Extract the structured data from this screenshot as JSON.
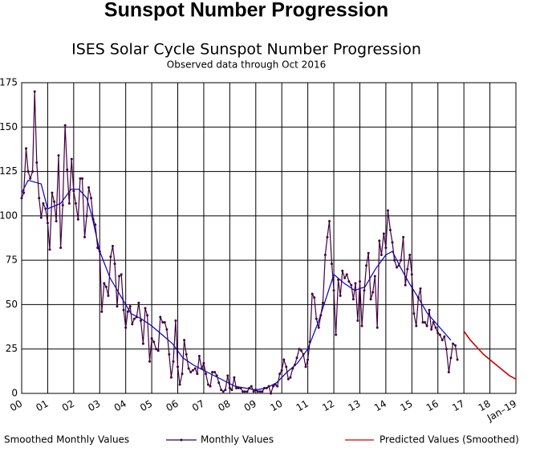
{
  "chart_data": {
    "type": "line",
    "title": "Sunspot Number Progression",
    "subtitle": "ISES Solar Cycle Sunspot Number Progression",
    "note": "Observed data through Oct 2016",
    "xlim": [
      0,
      19
    ],
    "ylim": [
      0,
      175
    ],
    "xticks": [
      {
        "value": 0,
        "label": "00"
      },
      {
        "value": 1,
        "label": "01"
      },
      {
        "value": 2,
        "label": "02"
      },
      {
        "value": 3,
        "label": "03"
      },
      {
        "value": 4,
        "label": "04"
      },
      {
        "value": 5,
        "label": "05"
      },
      {
        "value": 6,
        "label": "06"
      },
      {
        "value": 7,
        "label": "07"
      },
      {
        "value": 8,
        "label": "08"
      },
      {
        "value": 9,
        "label": "09"
      },
      10,
      11,
      12,
      13,
      14,
      15,
      16,
      17,
      18,
      {
        "value": 19,
        "label": "Jan–19"
      }
    ],
    "yticks": [
      0,
      25,
      50,
      75,
      100,
      125,
      150,
      175
    ],
    "grid": true,
    "series": [
      {
        "name": "Smoothed Monthly Values",
        "color": "#0000cc",
        "x": [
          0,
          0.25,
          0.75,
          1,
          1.5,
          1.9,
          2.2,
          2.5,
          2.7,
          2.85,
          3,
          3.4,
          3.8,
          4.2,
          4.6,
          5,
          5.4,
          5.8,
          6.2,
          6.6,
          7,
          7.4,
          7.8,
          8.2,
          8.6,
          9,
          9.4,
          9.8,
          10.2,
          10.6,
          11,
          11.4,
          11.8,
          12,
          12.4,
          12.8,
          13.2,
          13.6,
          14,
          14.25,
          14.6,
          14.9,
          15.2,
          15.6,
          15.9,
          16.2,
          16.5
        ],
        "values": [
          113,
          120,
          118,
          104,
          107,
          115,
          115,
          110,
          100,
          90,
          80,
          65,
          55,
          45,
          42,
          38,
          33,
          28,
          20,
          16,
          13,
          10,
          7,
          4,
          3,
          2,
          3,
          6,
          12,
          17,
          25,
          40,
          58,
          67,
          62,
          58,
          60,
          70,
          78,
          80,
          70,
          62,
          55,
          45,
          40,
          35,
          30
        ]
      },
      {
        "name": "Monthly Values",
        "color": "#400040",
        "x": [
          0,
          0.08,
          0.17,
          0.25,
          0.33,
          0.42,
          0.5,
          0.58,
          0.67,
          0.75,
          0.83,
          0.92,
          1,
          1.08,
          1.17,
          1.25,
          1.33,
          1.42,
          1.5,
          1.58,
          1.67,
          1.75,
          1.83,
          1.92,
          2,
          2.08,
          2.17,
          2.25,
          2.33,
          2.42,
          2.5,
          2.58,
          2.67,
          2.75,
          2.83,
          2.92,
          3,
          3.08,
          3.17,
          3.25,
          3.33,
          3.42,
          3.5,
          3.58,
          3.67,
          3.75,
          3.83,
          3.92,
          4,
          4.08,
          4.17,
          4.25,
          4.33,
          4.42,
          4.5,
          4.58,
          4.67,
          4.75,
          4.83,
          4.92,
          5,
          5.08,
          5.17,
          5.25,
          5.33,
          5.42,
          5.5,
          5.58,
          5.67,
          5.75,
          5.83,
          5.92,
          6,
          6.08,
          6.17,
          6.25,
          6.33,
          6.42,
          6.5,
          6.58,
          6.67,
          6.75,
          6.83,
          6.92,
          7,
          7.08,
          7.17,
          7.25,
          7.33,
          7.42,
          7.5,
          7.58,
          7.67,
          7.75,
          7.83,
          7.92,
          8,
          8.08,
          8.17,
          8.25,
          8.33,
          8.42,
          8.5,
          8.58,
          8.67,
          8.75,
          8.83,
          8.92,
          9,
          9.08,
          9.17,
          9.25,
          9.33,
          9.42,
          9.5,
          9.58,
          9.67,
          9.75,
          9.83,
          9.92,
          10,
          10.08,
          10.17,
          10.25,
          10.33,
          10.42,
          10.5,
          10.58,
          10.67,
          10.75,
          10.83,
          10.92,
          11,
          11.08,
          11.17,
          11.25,
          11.33,
          11.42,
          11.5,
          11.58,
          11.67,
          11.75,
          11.83,
          11.92,
          12,
          12.08,
          12.17,
          12.25,
          12.33,
          12.42,
          12.5,
          12.58,
          12.67,
          12.75,
          12.83,
          12.92,
          13,
          13.08,
          13.17,
          13.25,
          13.33,
          13.42,
          13.5,
          13.58,
          13.67,
          13.75,
          13.83,
          13.92,
          14,
          14.08,
          14.17,
          14.25,
          14.33,
          14.42,
          14.5,
          14.58,
          14.67,
          14.75,
          14.83,
          14.92,
          15,
          15.08,
          15.17,
          15.25,
          15.33,
          15.42,
          15.5,
          15.58,
          15.67,
          15.75,
          15.83,
          15.92,
          16,
          16.08,
          16.17,
          16.25,
          16.33,
          16.42,
          16.5,
          16.58,
          16.67,
          16.75
        ],
        "values": [
          110,
          113,
          138,
          125,
          121,
          125,
          170,
          130,
          110,
          99,
          107,
          104,
          96,
          81,
          113,
          108,
          97,
          134,
          82,
          106,
          151,
          126,
          107,
          132,
          114,
          107,
          98,
          121,
          121,
          88,
          100,
          116,
          110,
          98,
          95,
          82,
          80,
          46,
          62,
          60,
          55,
          77,
          83,
          73,
          49,
          66,
          67,
          47,
          37,
          46,
          49,
          39,
          42,
          43,
          51,
          41,
          28,
          48,
          44,
          18,
          31,
          29,
          25,
          24,
          43,
          40,
          40,
          36,
          22,
          9,
          18,
          41,
          15,
          5,
          11,
          30,
          22,
          14,
          12,
          13,
          14,
          11,
          21,
          14,
          17,
          11,
          5,
          4,
          12,
          12,
          10,
          6,
          2,
          1,
          2,
          10,
          3,
          2,
          9,
          3,
          3,
          3,
          1,
          1,
          1,
          3,
          4,
          1,
          2,
          1,
          1,
          1,
          3,
          3,
          4,
          0,
          4,
          5,
          4,
          11,
          13,
          19,
          15,
          8,
          9,
          14,
          16,
          20,
          25,
          24,
          22,
          15,
          19,
          29,
          56,
          54,
          42,
          37,
          44,
          51,
          78,
          88,
          97,
          73,
          58,
          33,
          64,
          55,
          69,
          65,
          67,
          63,
          61,
          53,
          62,
          41,
          63,
          38,
          58,
          72,
          79,
          53,
          57,
          66,
          37,
          86,
          78,
          90,
          82,
          103,
          92,
          85,
          75,
          71,
          72,
          75,
          88,
          61,
          70,
          78,
          67,
          45,
          38,
          54,
          59,
          40,
          40,
          38,
          47,
          36,
          40,
          37,
          34,
          33,
          30,
          32,
          25,
          12,
          20,
          28,
          27,
          19
        ]
      },
      {
        "name": "Predicted Values (Smoothed)",
        "color": "#cc0000",
        "x": [
          17,
          17.25,
          17.5,
          17.75,
          18,
          18.25,
          18.5,
          18.75,
          19
        ],
        "values": [
          35,
          30,
          26,
          22,
          19,
          16,
          13,
          10,
          8
        ]
      }
    ]
  }
}
